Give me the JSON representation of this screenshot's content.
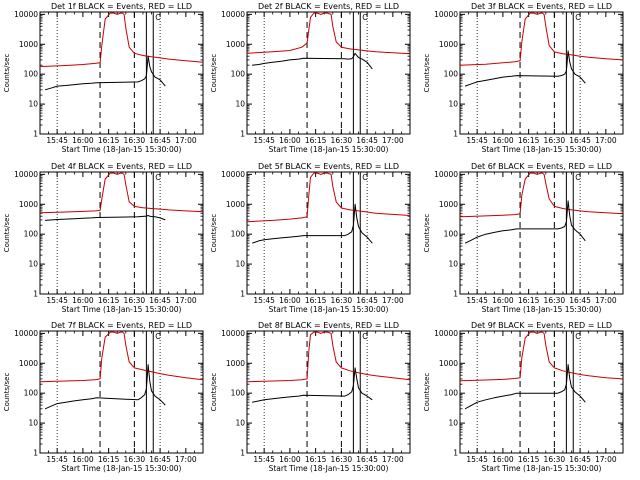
{
  "colors": {
    "events": "#000000",
    "lld": "#cc0000",
    "axes": "#000000",
    "background": "#ffffff"
  },
  "chart_data": {
    "type": "line",
    "layout": "3x3 grid",
    "x_units": "minutes after 15:30:00",
    "xlim": [
      5,
      100
    ],
    "ylim": [
      1,
      12000
    ],
    "yscale": "log",
    "xlabel": "Start Time (18-Jan-15 15:30:00)",
    "ylabel": "Counts/sec",
    "x_ticks": [
      {
        "label": "15:45",
        "value": 15
      },
      {
        "label": "16:00",
        "value": 30
      },
      {
        "label": "16:15",
        "value": 45
      },
      {
        "label": "16:30",
        "value": 60
      },
      {
        "label": "16:45",
        "value": 75
      },
      {
        "label": "17:00",
        "value": 90
      }
    ],
    "y_ticks": [
      {
        "label": "1",
        "value": 1
      },
      {
        "label": "10",
        "value": 10
      },
      {
        "label": "100",
        "value": 100
      },
      {
        "label": "1000",
        "value": 1000
      },
      {
        "label": "10000",
        "value": 10000
      }
    ],
    "minor_ticks_per_decade": [
      2,
      3,
      4,
      5,
      6,
      7,
      8,
      9
    ],
    "dotted_lines_x": [
      15,
      75
    ],
    "dashed_lines_x": [
      40,
      60
    ],
    "solid_lines_x": [
      67,
      71
    ],
    "bracket_label": "C",
    "panels": [
      {
        "title": "Det 1f BLACK = Events, RED = LLD",
        "lld": {
          "x": [
            5,
            10,
            20,
            30,
            37,
            40,
            41,
            43,
            46,
            48,
            50,
            52,
            53,
            54,
            55,
            57,
            60,
            65,
            70,
            75,
            80,
            90,
            100
          ],
          "y": [
            180,
            185,
            195,
            210,
            230,
            240,
            900,
            7000,
            11000,
            11000,
            10000,
            11000,
            11000,
            10000,
            3500,
            800,
            500,
            420,
            380,
            350,
            320,
            280,
            250
          ]
        },
        "events": {
          "x": [
            8,
            12,
            15,
            20,
            25,
            30,
            35,
            38,
            62,
            64,
            66,
            67,
            68,
            69,
            70,
            72,
            75,
            78
          ],
          "y": [
            30,
            35,
            40,
            42,
            45,
            48,
            50,
            52,
            55,
            60,
            70,
            90,
            400,
            180,
            120,
            80,
            65,
            40
          ]
        }
      },
      {
        "title": "Det 2f BLACK = Events, RED = LLD",
        "lld": {
          "x": [
            5,
            10,
            20,
            30,
            37,
            40,
            41,
            42,
            44,
            46,
            48,
            50,
            52,
            54,
            55,
            57,
            60,
            65,
            70,
            75,
            80,
            90,
            100
          ],
          "y": [
            500,
            520,
            560,
            620,
            800,
            1100,
            3000,
            8000,
            11000,
            11000,
            10000,
            11000,
            11000,
            10000,
            4000,
            1200,
            800,
            700,
            650,
            600,
            560,
            520,
            480
          ]
        },
        "events": {
          "x": [
            8,
            12,
            15,
            20,
            25,
            30,
            35,
            38,
            62,
            64,
            66,
            67,
            68,
            69,
            70,
            72,
            75,
            78
          ],
          "y": [
            200,
            210,
            230,
            250,
            270,
            300,
            320,
            340,
            330,
            320,
            330,
            380,
            500,
            420,
            360,
            320,
            250,
            150
          ]
        }
      },
      {
        "title": "Det 3f BLACK = Events, RED = LLD",
        "lld": {
          "x": [
            5,
            10,
            20,
            30,
            37,
            40,
            41,
            43,
            46,
            48,
            50,
            52,
            53,
            54,
            55,
            57,
            60,
            65,
            70,
            75,
            80,
            90,
            100
          ],
          "y": [
            200,
            205,
            215,
            240,
            260,
            280,
            1200,
            7000,
            11000,
            11000,
            10000,
            11000,
            11000,
            10000,
            4000,
            900,
            550,
            480,
            440,
            400,
            370,
            330,
            300
          ]
        },
        "events": {
          "x": [
            8,
            12,
            15,
            20,
            25,
            30,
            35,
            38,
            62,
            64,
            66,
            67,
            68,
            69,
            70,
            72,
            75,
            78
          ],
          "y": [
            40,
            48,
            55,
            62,
            70,
            80,
            85,
            90,
            85,
            90,
            100,
            130,
            600,
            250,
            150,
            100,
            80,
            50
          ]
        }
      },
      {
        "title": "Det 4f BLACK = Events, RED = LLD",
        "lld": {
          "x": [
            5,
            10,
            20,
            30,
            37,
            40,
            41,
            43,
            46,
            48,
            50,
            52,
            53,
            54,
            55,
            57,
            60,
            65,
            70,
            75,
            80,
            90,
            100
          ],
          "y": [
            520,
            530,
            550,
            580,
            600,
            620,
            1500,
            7000,
            11000,
            11000,
            10000,
            11000,
            11000,
            10000,
            4500,
            1200,
            850,
            760,
            720,
            690,
            650,
            600,
            560
          ]
        },
        "events": {
          "x": [
            8,
            12,
            15,
            20,
            25,
            30,
            35,
            38,
            62,
            64,
            66,
            67,
            68,
            69,
            70,
            72,
            75,
            78
          ],
          "y": [
            290,
            300,
            310,
            320,
            330,
            340,
            350,
            360,
            380,
            390,
            400,
            400,
            420,
            400,
            390,
            380,
            350,
            300
          ]
        }
      },
      {
        "title": "Det 5f BLACK = Events, RED = LLD",
        "lld": {
          "x": [
            5,
            10,
            20,
            30,
            37,
            40,
            41,
            42,
            44,
            46,
            48,
            50,
            52,
            54,
            55,
            57,
            60,
            65,
            70,
            75,
            80,
            90,
            100
          ],
          "y": [
            260,
            270,
            290,
            320,
            350,
            380,
            2000,
            8000,
            11000,
            11000,
            10000,
            11000,
            11000,
            10000,
            4000,
            1200,
            750,
            650,
            600,
            550,
            500,
            460,
            420
          ]
        },
        "events": {
          "x": [
            8,
            12,
            15,
            20,
            25,
            30,
            35,
            38,
            62,
            64,
            66,
            67,
            68,
            69,
            70,
            72,
            75,
            78
          ],
          "y": [
            50,
            60,
            65,
            70,
            75,
            80,
            85,
            90,
            90,
            100,
            120,
            200,
            1000,
            350,
            180,
            110,
            80,
            50
          ]
        }
      },
      {
        "title": "Det 6f BLACK = Events, RED = LLD",
        "lld": {
          "x": [
            5,
            10,
            20,
            30,
            37,
            40,
            41,
            43,
            46,
            48,
            50,
            52,
            53,
            54,
            55,
            57,
            60,
            65,
            70,
            75,
            80,
            90,
            100
          ],
          "y": [
            380,
            390,
            410,
            430,
            450,
            480,
            2000,
            7000,
            11000,
            11000,
            10000,
            11000,
            11000,
            10000,
            5000,
            1500,
            850,
            720,
            650,
            600,
            560,
            520,
            480
          ]
        },
        "events": {
          "x": [
            8,
            12,
            15,
            20,
            25,
            30,
            35,
            38,
            62,
            64,
            66,
            67,
            68,
            69,
            70,
            72,
            75,
            78
          ],
          "y": [
            50,
            65,
            80,
            100,
            115,
            130,
            140,
            150,
            150,
            160,
            180,
            260,
            1300,
            400,
            200,
            140,
            100,
            60
          ]
        }
      },
      {
        "title": "Det 7f BLACK = Events, RED = LLD",
        "lld": {
          "x": [
            5,
            10,
            20,
            30,
            37,
            40,
            41,
            43,
            46,
            48,
            50,
            52,
            53,
            54,
            55,
            57,
            60,
            65,
            70,
            75,
            80,
            90,
            100
          ],
          "y": [
            240,
            245,
            255,
            265,
            280,
            300,
            1500,
            7500,
            11000,
            11000,
            10000,
            11000,
            11000,
            10000,
            4000,
            1100,
            700,
            600,
            520,
            450,
            400,
            330,
            280
          ]
        },
        "events": {
          "x": [
            8,
            12,
            15,
            20,
            25,
            30,
            35,
            38,
            62,
            64,
            66,
            67,
            68,
            69,
            70,
            72,
            75,
            78
          ],
          "y": [
            30,
            38,
            45,
            50,
            55,
            60,
            65,
            70,
            60,
            70,
            90,
            140,
            900,
            250,
            120,
            80,
            60,
            40
          ]
        }
      },
      {
        "title": "Det 8f BLACK = Events, RED = LLD",
        "lld": {
          "x": [
            5,
            10,
            20,
            30,
            37,
            40,
            41,
            42,
            44,
            46,
            48,
            50,
            52,
            54,
            55,
            57,
            60,
            65,
            70,
            75,
            80,
            90,
            100
          ],
          "y": [
            240,
            245,
            255,
            265,
            280,
            300,
            2500,
            9000,
            11000,
            11000,
            10000,
            11000,
            11000,
            10000,
            4000,
            1100,
            700,
            560,
            480,
            420,
            380,
            330,
            280
          ]
        },
        "events": {
          "x": [
            8,
            12,
            15,
            20,
            25,
            30,
            35,
            38,
            62,
            64,
            66,
            67,
            68,
            69,
            70,
            72,
            75,
            78
          ],
          "y": [
            50,
            55,
            60,
            65,
            70,
            75,
            80,
            85,
            80,
            90,
            110,
            180,
            700,
            300,
            150,
            100,
            80,
            60
          ]
        }
      },
      {
        "title": "Det 9f BLACK = Events, RED = LLD",
        "lld": {
          "x": [
            5,
            10,
            20,
            30,
            37,
            40,
            41,
            43,
            46,
            48,
            50,
            52,
            53,
            54,
            55,
            57,
            60,
            65,
            70,
            75,
            80,
            90,
            100
          ],
          "y": [
            260,
            265,
            275,
            290,
            310,
            330,
            1500,
            7000,
            11000,
            11000,
            10000,
            11000,
            11000,
            10000,
            4000,
            1100,
            700,
            560,
            480,
            420,
            380,
            330,
            300
          ]
        },
        "events": {
          "x": [
            8,
            12,
            15,
            20,
            25,
            30,
            35,
            38,
            62,
            64,
            66,
            67,
            68,
            69,
            70,
            72,
            75,
            78
          ],
          "y": [
            30,
            40,
            50,
            60,
            70,
            80,
            90,
            100,
            100,
            110,
            130,
            200,
            900,
            300,
            160,
            110,
            80,
            50
          ]
        }
      }
    ]
  }
}
